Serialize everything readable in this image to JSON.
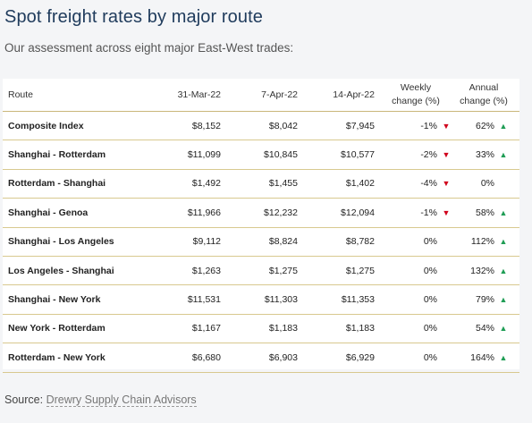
{
  "title": "Spot freight rates by major route",
  "subtitle": "Our assessment across eight major East-West trades:",
  "table": {
    "headers": {
      "route": "Route",
      "d1": "31-Mar-22",
      "d2": "7-Apr-22",
      "d3": "14-Apr-22",
      "weekly_line1": "Weekly",
      "weekly_line2": "change (%)",
      "annual_line1": "Annual",
      "annual_line2": "change (%)"
    },
    "rows": [
      {
        "route": "Composite Index",
        "d1": "$8,152",
        "d2": "$8,042",
        "d3": "$7,945",
        "weekly": "-1%",
        "weekly_dir": "down",
        "annual": "62%",
        "annual_dir": "up"
      },
      {
        "route": "Shanghai - Rotterdam",
        "d1": "$11,099",
        "d2": "$10,845",
        "d3": "$10,577",
        "weekly": "-2%",
        "weekly_dir": "down",
        "annual": "33%",
        "annual_dir": "up"
      },
      {
        "route": "Rotterdam - Shanghai",
        "d1": "$1,492",
        "d2": "$1,455",
        "d3": "$1,402",
        "weekly": "-4%",
        "weekly_dir": "down",
        "annual": "0%",
        "annual_dir": "none"
      },
      {
        "route": "Shanghai - Genoa",
        "d1": "$11,966",
        "d2": "$12,232",
        "d3": "$12,094",
        "weekly": "-1%",
        "weekly_dir": "down",
        "annual": "58%",
        "annual_dir": "up"
      },
      {
        "route": "Shanghai - Los Angeles",
        "d1": "$9,112",
        "d2": "$8,824",
        "d3": "$8,782",
        "weekly": "0%",
        "weekly_dir": "none",
        "annual": "112%",
        "annual_dir": "up"
      },
      {
        "route": "Los Angeles - Shanghai",
        "d1": "$1,263",
        "d2": "$1,275",
        "d3": "$1,275",
        "weekly": "0%",
        "weekly_dir": "none",
        "annual": "132%",
        "annual_dir": "up"
      },
      {
        "route": "Shanghai - New York",
        "d1": "$11,531",
        "d2": "$11,303",
        "d3": "$11,353",
        "weekly": "0%",
        "weekly_dir": "none",
        "annual": "79%",
        "annual_dir": "up"
      },
      {
        "route": "New York - Rotterdam",
        "d1": "$1,167",
        "d2": "$1,183",
        "d3": "$1,183",
        "weekly": "0%",
        "weekly_dir": "none",
        "annual": "54%",
        "annual_dir": "up"
      },
      {
        "route": "Rotterdam - New York",
        "d1": "$6,680",
        "d2": "$6,903",
        "d3": "$6,929",
        "weekly": "0%",
        "weekly_dir": "none",
        "annual": "164%",
        "annual_dir": "up"
      }
    ]
  },
  "source": {
    "label": "Source: ",
    "link_text": "Drewry Supply Chain Advisors"
  },
  "colors": {
    "title": "#1f3b5c",
    "arrow_up": "#1f9d55",
    "arrow_down": "#d0021b",
    "rule": "#d8c98f"
  },
  "icons": {
    "up": "triangle-up-icon",
    "down": "triangle-down-icon"
  }
}
